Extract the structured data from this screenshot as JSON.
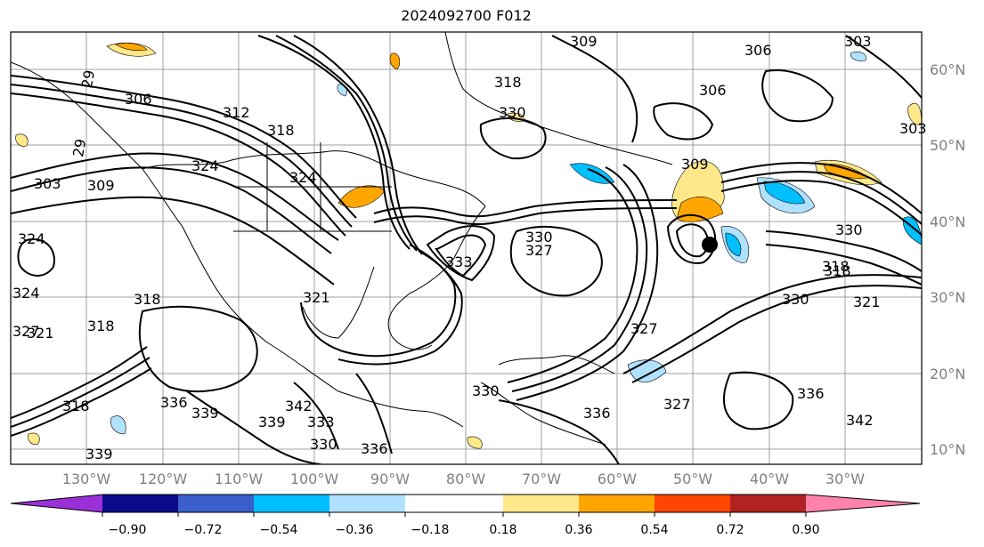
{
  "title": "2024092700 F012",
  "longitude_labels": [
    "130°W",
    "120°W",
    "110°W",
    "100°W",
    "90°W",
    "80°W",
    "70°W",
    "60°W",
    "50°W",
    "40°W",
    "30°W"
  ],
  "latitude_labels": [
    "60°N",
    "50°N",
    "40°N",
    "30°N",
    "20°N",
    "10°N"
  ],
  "contour_labels": [
    "29",
    "306",
    "312",
    "318",
    "303",
    "309",
    "29",
    "324",
    "324",
    "324",
    "318",
    "321",
    "327",
    "324",
    "321",
    "318",
    "318",
    "336",
    "339",
    "339",
    "342",
    "333",
    "330",
    "336",
    "330",
    "327",
    "330",
    "306",
    "309",
    "309",
    "303",
    "306",
    "303",
    "330",
    "318",
    "321",
    "327",
    "336",
    "342",
    "330",
    "339",
    "318",
    "333",
    "330",
    "327",
    "336",
    "318"
  ],
  "colorbar": {
    "ticks": [
      "−0.90",
      "−0.72",
      "−0.54",
      "−0.36",
      "−0.18",
      "0.18",
      "0.36",
      "0.54",
      "0.72",
      "0.90"
    ],
    "colors": [
      "#9b30d9",
      "#0a0a8a",
      "#3a5fcd",
      "#00bfff",
      "#b0e2ff",
      "#ffffff",
      "#ffe88a",
      "#ffa500",
      "#ff4500",
      "#b22222",
      "#ff82ab"
    ]
  },
  "shading_colors": {
    "positive_light": "#ffe88a",
    "positive_mid": "#ffa500",
    "negative_light": "#b0e2ff",
    "negative_mid": "#00bfff"
  },
  "marker": "storm-center-dot"
}
